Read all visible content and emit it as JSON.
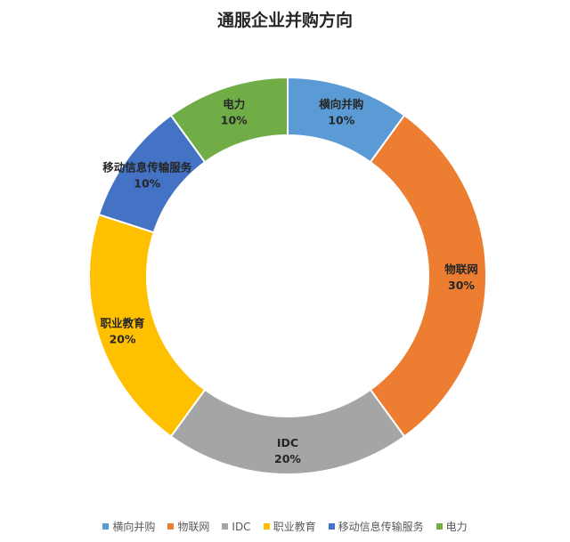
{
  "chart_data": {
    "type": "pie",
    "title": "通服企业并购方向",
    "categories": [
      "横向并购",
      "物联网",
      "IDC",
      "职业教育",
      "移动信息传输服务",
      "电力"
    ],
    "values": [
      10,
      30,
      20,
      20,
      10,
      10
    ],
    "value_labels": [
      "10%",
      "30%",
      "20%",
      "20%",
      "10%",
      "10%"
    ],
    "colors": [
      "#5B9BD5",
      "#ED7D31",
      "#A5A5A5",
      "#FFC000",
      "#4472C4",
      "#70AD47"
    ],
    "donut": true,
    "legend_position": "bottom"
  }
}
